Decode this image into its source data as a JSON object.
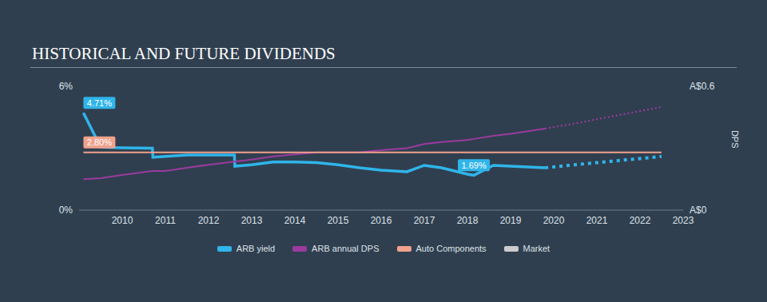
{
  "chart_data": {
    "type": "line",
    "title": "HISTORICAL AND FUTURE DIVIDENDS",
    "y2label": "DPS",
    "x": [
      2009.1,
      2009.5,
      2010,
      2010.7,
      2010.71,
      2011,
      2011.5,
      2012,
      2012.6,
      2012.61,
      2013,
      2013.5,
      2014,
      2014.5,
      2015,
      2015.5,
      2016,
      2016.6,
      2017,
      2017.4,
      2018,
      2018.15,
      2018.6,
      2019,
      2019.8,
      2020.5,
      2021,
      2021.5,
      2022,
      2022.5
    ],
    "xlim": [
      2009,
      2023
    ],
    "xticks": [
      2010,
      2011,
      2012,
      2013,
      2014,
      2015,
      2016,
      2017,
      2018,
      2019,
      2020,
      2021,
      2022,
      2023
    ],
    "ylim": [
      0,
      6
    ],
    "yticks": [
      {
        "value": 0,
        "label": "0%"
      },
      {
        "value": 6,
        "label": "6%"
      }
    ],
    "y2lim": [
      0,
      0.6
    ],
    "y2ticks": [
      {
        "value": 0,
        "label": "A$0"
      },
      {
        "value": 0.6,
        "label": "A$0.6"
      }
    ],
    "grid": false,
    "legend": "bottom",
    "series": [
      {
        "name": "ARB yield",
        "color": "#2fb5ea",
        "axis": "y",
        "values": [
          4.71,
          3.05,
          3.02,
          3.0,
          2.56,
          2.6,
          2.67,
          2.67,
          2.67,
          2.13,
          2.2,
          2.33,
          2.33,
          2.3,
          2.2,
          2.05,
          1.94,
          1.86,
          2.17,
          2.05,
          1.74,
          1.69,
          2.17,
          2.13,
          2.05,
          null,
          null,
          null,
          null,
          null
        ],
        "forecast": [
          null,
          null,
          null,
          null,
          null,
          null,
          null,
          null,
          null,
          null,
          null,
          null,
          null,
          null,
          null,
          null,
          null,
          null,
          null,
          null,
          null,
          null,
          null,
          null,
          2.05,
          2.2,
          2.3,
          2.4,
          2.5,
          2.6
        ]
      },
      {
        "name": "ARB annual DPS",
        "color": "#9b3b9e",
        "axis": "y2",
        "values": [
          0.15,
          0.155,
          0.17,
          0.19,
          0.19,
          0.19,
          0.205,
          0.22,
          0.235,
          0.235,
          0.245,
          0.26,
          0.27,
          0.28,
          0.28,
          0.28,
          0.29,
          0.3,
          0.32,
          0.33,
          0.34,
          0.345,
          0.36,
          0.37,
          0.395,
          null,
          null,
          null,
          null,
          null
        ],
        "forecast": [
          null,
          null,
          null,
          null,
          null,
          null,
          null,
          null,
          null,
          null,
          null,
          null,
          null,
          null,
          null,
          null,
          null,
          null,
          null,
          null,
          null,
          null,
          null,
          null,
          0.395,
          0.42,
          0.44,
          0.46,
          0.48,
          0.5
        ]
      },
      {
        "name": "Auto Components",
        "color": "#f0a28c",
        "axis": "y",
        "values": [
          2.8,
          2.8,
          2.8,
          2.8,
          2.8,
          2.8,
          2.8,
          2.8,
          2.8,
          2.8,
          2.8,
          2.8,
          2.8,
          2.8,
          2.8,
          2.8,
          2.8,
          2.8,
          2.8,
          2.8,
          2.8,
          2.8,
          2.8,
          2.8,
          2.8,
          2.8,
          2.8,
          2.8,
          2.8,
          2.8
        ]
      },
      {
        "name": "Market",
        "color": "#cccccc",
        "axis": "y",
        "values": [
          null,
          null,
          null,
          null,
          null,
          null,
          null,
          null,
          null,
          null,
          null,
          null,
          null,
          null,
          null,
          null,
          null,
          null,
          null,
          null,
          null,
          null,
          null,
          null,
          null,
          null,
          null,
          null,
          null,
          null
        ]
      }
    ],
    "annotations": [
      {
        "text": "4.71%",
        "x": 2009.1,
        "y": 4.71,
        "series": "ARB yield"
      },
      {
        "text": "2.80%",
        "x": 2009.1,
        "y": 2.8,
        "series": "Auto Components"
      },
      {
        "text": "1.69%",
        "x": 2018.15,
        "y": 1.69,
        "series": "ARB yield"
      }
    ]
  }
}
